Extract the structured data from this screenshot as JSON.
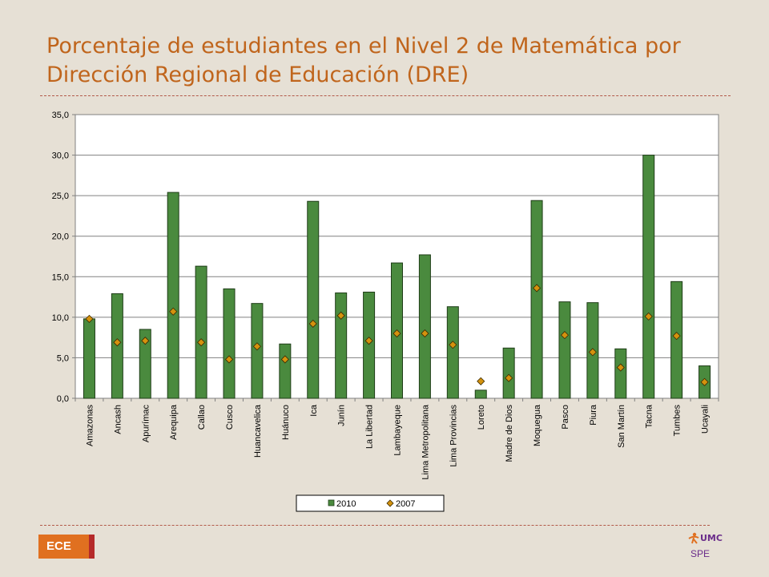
{
  "slide": {
    "title_line1": "Porcentaje de estudiantes en el Nivel 2 de Matemática por",
    "title_line2": "Dirección Regional de Educación (DRE)",
    "badge": "ECE",
    "logo_text": "UMC",
    "logo_sub": "SPE"
  },
  "chart_data": {
    "type": "bar",
    "title": "",
    "xlabel": "",
    "ylabel": "",
    "ylim": [
      0,
      35
    ],
    "yticks": [
      "0,0",
      "5,0",
      "10,0",
      "15,0",
      "20,0",
      "25,0",
      "30,0",
      "35,0"
    ],
    "grid": true,
    "legend_position": "bottom",
    "categories": [
      "Amazonas",
      "Ancash",
      "Apurímac",
      "Arequipa",
      "Callao",
      "Cusco",
      "Huancavelica",
      "Huánuco",
      "Ica",
      "Junín",
      "La Libertad",
      "Lambayeque",
      "Lima Metropolitana",
      "Lima Provincias",
      "Loreto",
      "Madre de Dios",
      "Moquegua",
      "Pasco",
      "Piura",
      "San Martín",
      "Tacna",
      "Tumbes",
      "Ucayali"
    ],
    "series": [
      {
        "name": "2010",
        "kind": "bar",
        "color": "#4a8a3e",
        "values": [
          9.8,
          12.9,
          8.5,
          25.4,
          16.3,
          13.5,
          11.7,
          6.7,
          24.3,
          13.0,
          13.1,
          16.7,
          17.7,
          11.3,
          1.0,
          6.2,
          24.4,
          11.9,
          11.8,
          6.1,
          30.0,
          14.4,
          4.0
        ]
      },
      {
        "name": "2007",
        "kind": "marker",
        "color": "#d4920e",
        "values": [
          9.8,
          6.9,
          7.1,
          10.7,
          6.9,
          4.8,
          6.4,
          4.8,
          9.2,
          10.2,
          7.1,
          8.0,
          8.0,
          6.6,
          2.1,
          2.5,
          13.6,
          7.8,
          5.7,
          3.8,
          10.1,
          7.7,
          2.0
        ]
      }
    ]
  }
}
